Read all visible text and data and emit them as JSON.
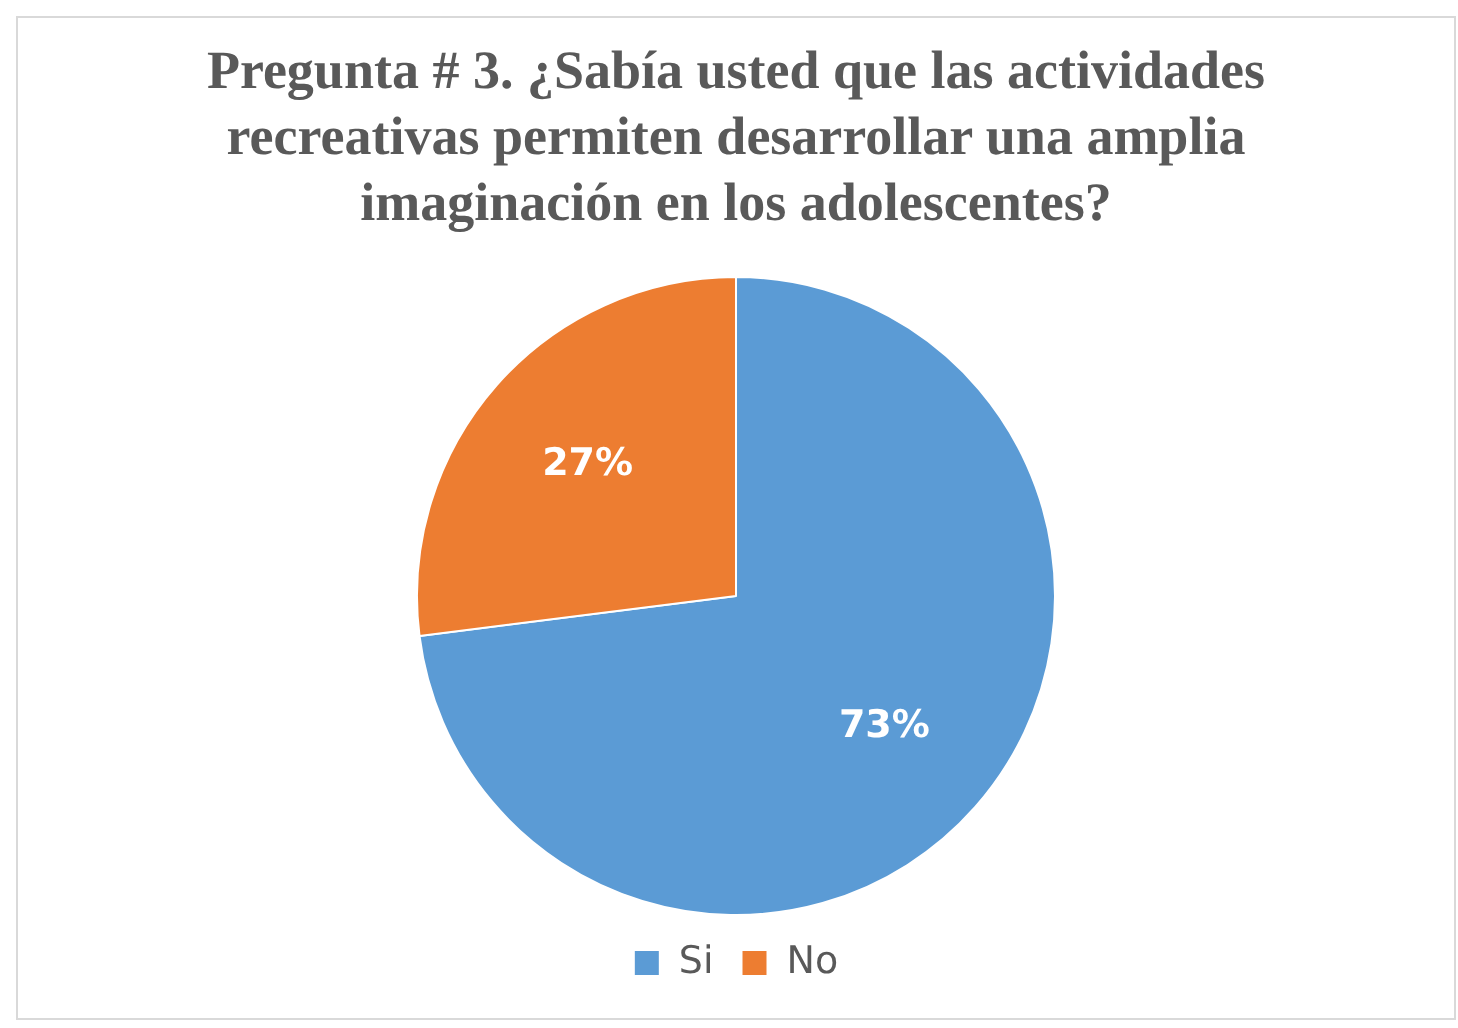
{
  "chart_data": {
    "type": "pie",
    "title": "Pregunta # 3. ¿Sabía usted que las actividades recreativas permiten desarrollar una amplia imaginación en los adolescentes?",
    "categories": [
      "Si",
      "No"
    ],
    "values": [
      73,
      27
    ],
    "colors": [
      "#5b9bd5",
      "#ed7d31"
    ],
    "value_labels": [
      "73%",
      "27%"
    ],
    "legend": "bottom"
  }
}
